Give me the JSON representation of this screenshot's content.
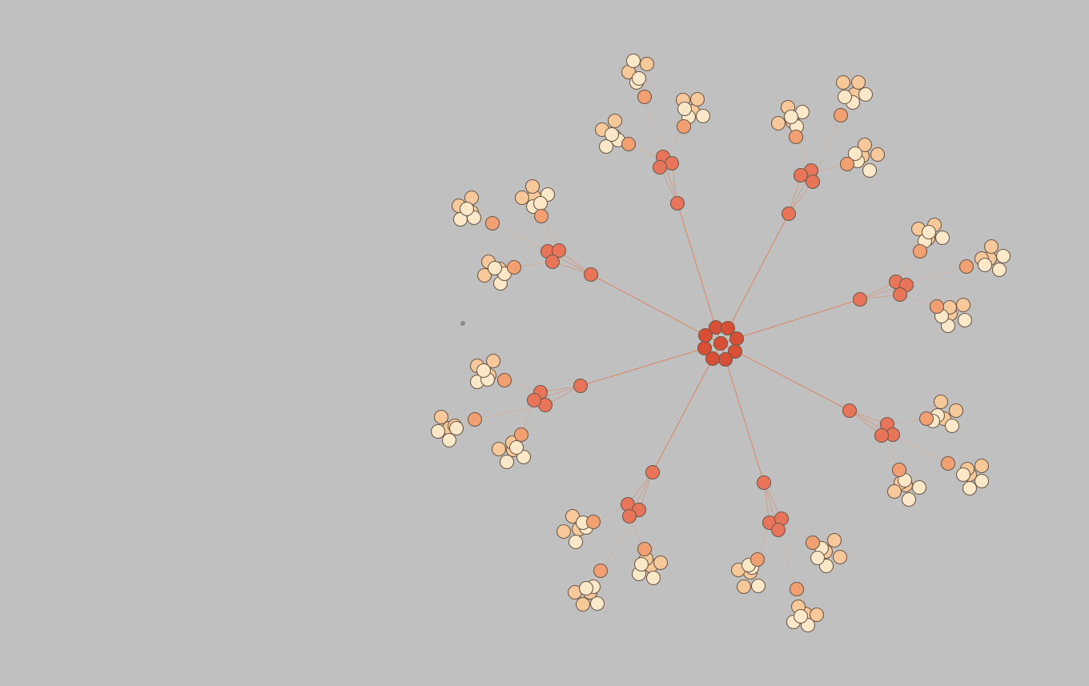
{
  "graph": {
    "type": "radial-tree",
    "root": "root",
    "levels": 4,
    "branches_per_node": [
      8,
      3,
      3,
      6
    ],
    "colors": {
      "background": "#c0c0c0",
      "link": "#e07a50",
      "level_fill": [
        "#d84f35",
        "#e8745a",
        "#f2a072",
        "#f7c99a",
        "#fbe8c8"
      ],
      "node_stroke": "#6f5a4a"
    }
  }
}
